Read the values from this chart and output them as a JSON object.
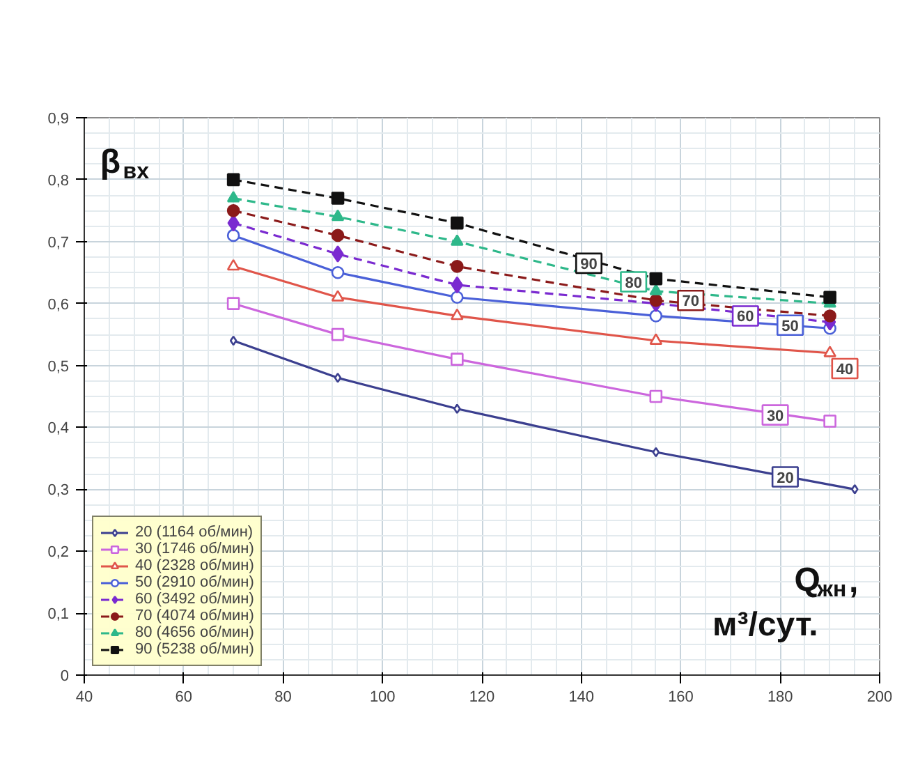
{
  "chart_data": {
    "type": "line",
    "xlabel": "Q$_{жн}$, м³/сут.",
    "ylabel": "β$_{вх}$",
    "xlim": [
      40,
      200
    ],
    "xticks": [
      40,
      60,
      80,
      100,
      120,
      140,
      160,
      180,
      200
    ],
    "ylim": [
      0,
      0.9
    ],
    "yticks": [
      {
        "value": 0,
        "label": "0"
      },
      {
        "value": 0.1,
        "label": "0,1"
      },
      {
        "value": 0.2,
        "label": "0,2"
      },
      {
        "value": 0.3,
        "label": "0,3"
      },
      {
        "value": 0.4,
        "label": "0,4"
      },
      {
        "value": 0.5,
        "label": "0,5"
      },
      {
        "value": 0.6,
        "label": "0,6"
      },
      {
        "value": 0.7,
        "label": "0,7"
      },
      {
        "value": 0.8,
        "label": "0,8"
      },
      {
        "value": 0.9,
        "label": "0,9"
      }
    ],
    "grid": true,
    "legend": "bottom left",
    "x": [
      70,
      91,
      115,
      155,
      190
    ],
    "series": [
      {
        "name": "20 (1164 об/мин)",
        "color": "#3b3f8f",
        "marker": "diamond",
        "line_style": "solid",
        "x": [
          70,
          91,
          115,
          155,
          195
        ],
        "values": [
          0.54,
          0.48,
          0.43,
          0.36,
          0.3
        ]
      },
      {
        "name": "30 (1746 об/мин)",
        "color": "#cc66dd",
        "marker": "square",
        "line_style": "solid",
        "values": [
          0.6,
          0.55,
          0.51,
          0.45,
          0.41
        ]
      },
      {
        "name": "40 (2328 об/мин)",
        "color": "#e0554a",
        "marker": "triangle",
        "line_style": "solid",
        "values": [
          0.66,
          0.61,
          0.58,
          0.54,
          0.52
        ]
      },
      {
        "name": "50 (2910 об/мин)",
        "color": "#4a60d8",
        "marker": "circle",
        "line_style": "solid",
        "values": [
          0.71,
          0.65,
          0.61,
          0.58,
          0.56
        ]
      },
      {
        "name": "60 (3492 об/мин)",
        "color": "#7a2ad0",
        "marker": "diamond",
        "line_style": "dashed",
        "values": [
          0.73,
          0.68,
          0.63,
          0.6,
          0.57
        ]
      },
      {
        "name": "70 (4074 об/мин)",
        "color": "#8b1a1a",
        "marker": "circle",
        "line_style": "dashed",
        "values": [
          0.75,
          0.71,
          0.66,
          0.605,
          0.58
        ]
      },
      {
        "name": "80 (4656 об/мин)",
        "color": "#2eb88a",
        "marker": "triangle",
        "line_style": "dashed",
        "values": [
          0.77,
          0.74,
          0.7,
          0.62,
          0.6
        ]
      },
      {
        "name": "90 (5238 об/мин)",
        "color": "#111111",
        "marker": "square",
        "line_style": "dashed",
        "values": [
          0.8,
          0.77,
          0.73,
          0.64,
          0.61
        ]
      }
    ],
    "annotations": [
      {
        "text": "20",
        "x": 181,
        "y": 0.32
      },
      {
        "text": "30",
        "x": 179,
        "y": 0.42
      },
      {
        "text": "40",
        "x": 193,
        "y": 0.495
      },
      {
        "text": "50",
        "x": 182,
        "y": 0.565
      },
      {
        "text": "60",
        "x": 173,
        "y": 0.58
      },
      {
        "text": "70",
        "x": 162,
        "y": 0.605
      },
      {
        "text": "80",
        "x": 150.5,
        "y": 0.635
      },
      {
        "text": "90",
        "x": 141.5,
        "y": 0.665
      }
    ]
  }
}
